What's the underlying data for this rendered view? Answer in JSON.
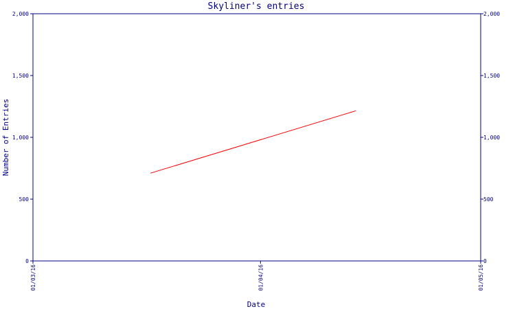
{
  "chart_data": {
    "type": "line",
    "title": "Skyliner's entries",
    "xlabel": "Date",
    "ylabel": "Number of Entries",
    "x_ticks": [
      "01/03/16",
      "01/04/16",
      "01/05/16"
    ],
    "y_ticks": [
      "0",
      "500",
      "1,000",
      "1,500",
      "2,000"
    ],
    "y_tick_values": [
      0,
      500,
      1000,
      1500,
      2000
    ],
    "ylim": [
      0,
      2000
    ],
    "xlim": [
      "2016-03-01",
      "2016-05-01"
    ],
    "grid": false,
    "right_axis": true,
    "series": [
      {
        "x": [
          "2016-03-17",
          "2016-04-14"
        ],
        "y": [
          710,
          1215
        ],
        "color": "#ff0000"
      }
    ],
    "colors": {
      "axis": "#000080",
      "text": "#000080",
      "line": "#ff0000"
    }
  }
}
